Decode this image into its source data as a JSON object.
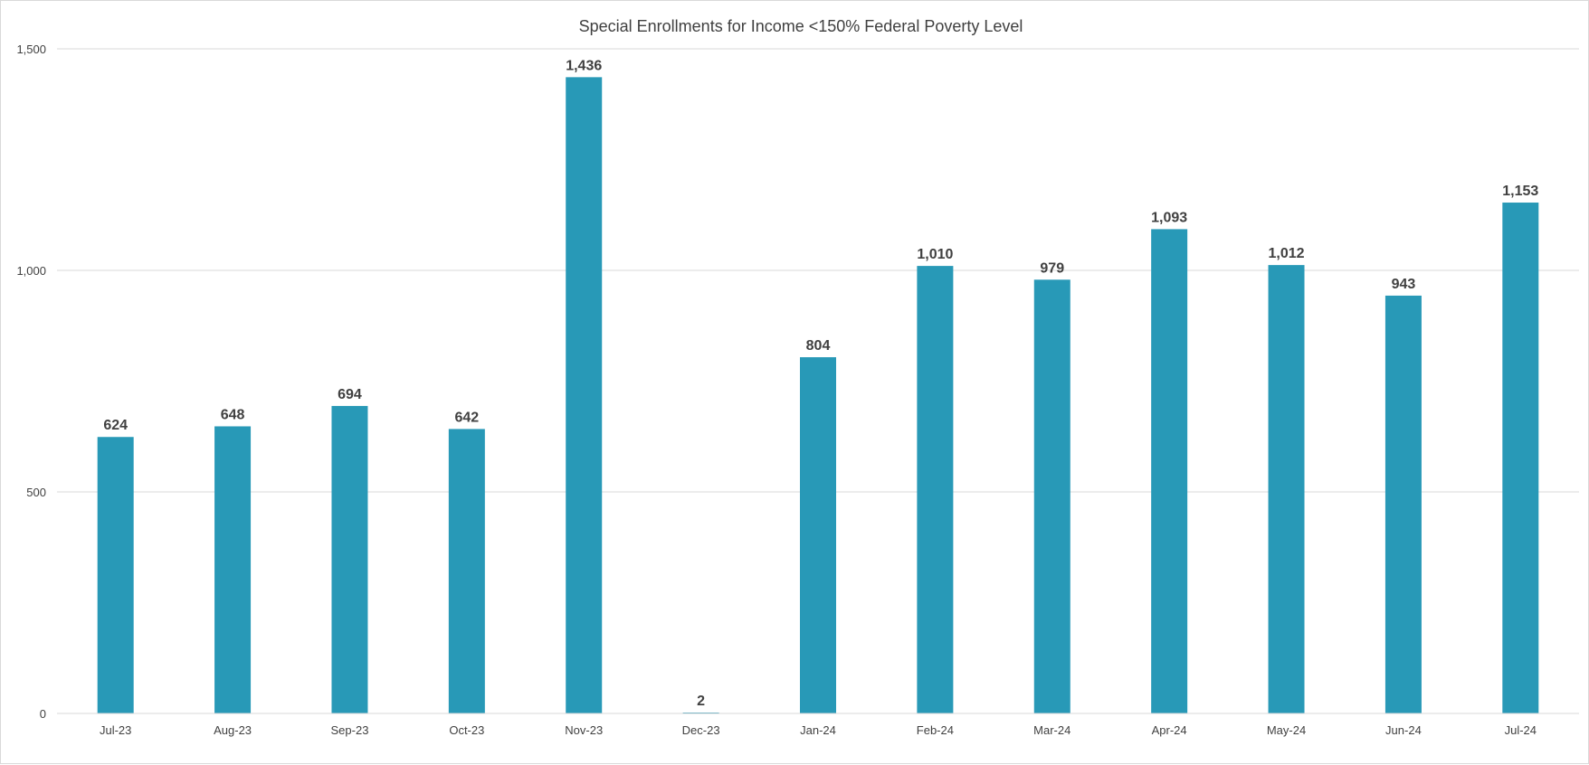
{
  "chart_data": {
    "type": "bar",
    "title": "Special Enrollments for Income <150% Federal Poverty Level",
    "xlabel": "",
    "ylabel": "",
    "categories": [
      "Jul-23",
      "Aug-23",
      "Sep-23",
      "Oct-23",
      "Nov-23",
      "Dec-23",
      "Jan-24",
      "Feb-24",
      "Mar-24",
      "Apr-24",
      "May-24",
      "Jun-24",
      "Jul-24"
    ],
    "values": [
      624,
      648,
      694,
      642,
      1436,
      2,
      804,
      1010,
      979,
      1093,
      1012,
      943,
      1153
    ],
    "data_labels": [
      "624",
      "648",
      "694",
      "642",
      "1,436",
      "2",
      "804",
      "1,010",
      "979",
      "1,093",
      "1,012",
      "943",
      "1,153"
    ],
    "ylim": [
      0,
      1500
    ],
    "yticks": [
      0,
      500,
      1000,
      1500
    ],
    "ytick_labels": [
      "0",
      "500",
      "1,000",
      "1,500"
    ],
    "grid": true,
    "legend": "none",
    "bar_color": "#2899b7",
    "grid_color": "#d9d9d9"
  }
}
